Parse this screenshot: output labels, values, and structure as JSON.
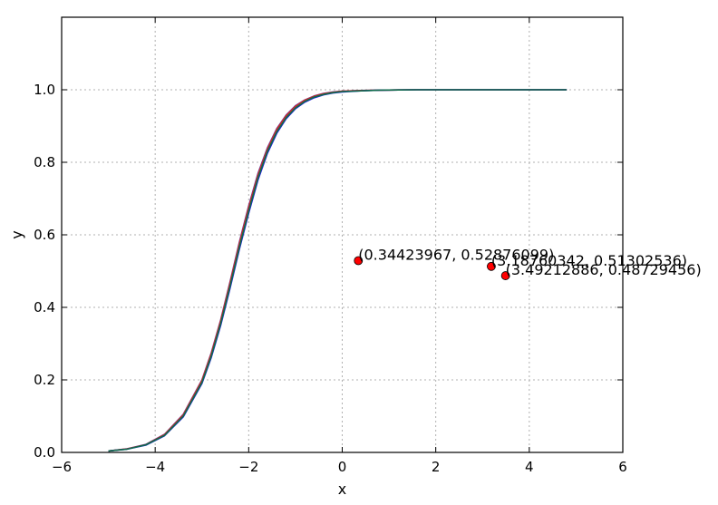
{
  "chart_data": {
    "type": "line",
    "title": "",
    "xlabel": "x",
    "ylabel": "y",
    "xlim": [
      -6,
      6
    ],
    "ylim": [
      0,
      1.2
    ],
    "x_ticks": [
      -6,
      -4,
      -2,
      0,
      2,
      4,
      6
    ],
    "x_tick_labels": [
      "−6",
      "−4",
      "−2",
      "0",
      "2",
      "4",
      "6"
    ],
    "y_ticks": [
      0.0,
      0.2,
      0.4,
      0.6,
      0.8,
      1.0
    ],
    "y_tick_labels": [
      "0.0",
      "0.2",
      "0.4",
      "0.6",
      "0.8",
      "1.0"
    ],
    "grid": true,
    "x": [
      -5.0,
      -4.6,
      -4.2,
      -3.8,
      -3.4,
      -3.0,
      -2.8,
      -2.6,
      -2.4,
      -2.2,
      -2.0,
      -1.8,
      -1.6,
      -1.4,
      -1.2,
      -1.0,
      -0.8,
      -0.6,
      -0.4,
      -0.2,
      0.0,
      0.4,
      0.8,
      1.2,
      1.6,
      2.0,
      3.0,
      4.0,
      4.8
    ],
    "series": [
      {
        "color": "#6a3d9a",
        "values": [
          0.004,
          0.01,
          0.022,
          0.05,
          0.105,
          0.2,
          0.275,
          0.365,
          0.47,
          0.58,
          0.68,
          0.77,
          0.84,
          0.893,
          0.93,
          0.956,
          0.972,
          0.983,
          0.99,
          0.994,
          0.996,
          0.998,
          0.999,
          0.9995,
          1.0,
          1.0,
          1.0,
          1.0,
          1.0
        ]
      },
      {
        "color": "#d62728",
        "values": [
          0.004,
          0.01,
          0.021,
          0.049,
          0.103,
          0.198,
          0.272,
          0.362,
          0.466,
          0.575,
          0.675,
          0.765,
          0.836,
          0.89,
          0.928,
          0.954,
          0.971,
          0.982,
          0.989,
          0.993,
          0.996,
          0.998,
          0.999,
          0.9995,
          1.0,
          1.0,
          1.0,
          1.0,
          1.0
        ]
      },
      {
        "color": "#1f1fd6",
        "values": [
          0.004,
          0.009,
          0.02,
          0.046,
          0.098,
          0.19,
          0.262,
          0.35,
          0.452,
          0.56,
          0.66,
          0.752,
          0.825,
          0.88,
          0.92,
          0.948,
          0.966,
          0.978,
          0.986,
          0.991,
          0.994,
          0.997,
          0.999,
          0.9995,
          1.0,
          1.0,
          1.0,
          1.0,
          1.0
        ]
      },
      {
        "color": "#0f6b4a",
        "values": [
          0.004,
          0.009,
          0.021,
          0.047,
          0.1,
          0.193,
          0.266,
          0.355,
          0.458,
          0.566,
          0.666,
          0.758,
          0.83,
          0.884,
          0.923,
          0.95,
          0.968,
          0.98,
          0.987,
          0.992,
          0.995,
          0.997,
          0.999,
          0.9995,
          1.0,
          1.0,
          1.0,
          1.0,
          1.0
        ]
      }
    ],
    "points": [
      {
        "x": 0.34423967,
        "y": 0.52876099,
        "label": "(0.34423967, 0.52876099)"
      },
      {
        "x": 3.18760342,
        "y": 0.51302536,
        "label": "(3.18760342, 0.51302536)"
      },
      {
        "x": 3.49212886,
        "y": 0.48729456,
        "label": "(3.49212886, 0.48729456)"
      }
    ],
    "point_color": "#ff0000"
  }
}
